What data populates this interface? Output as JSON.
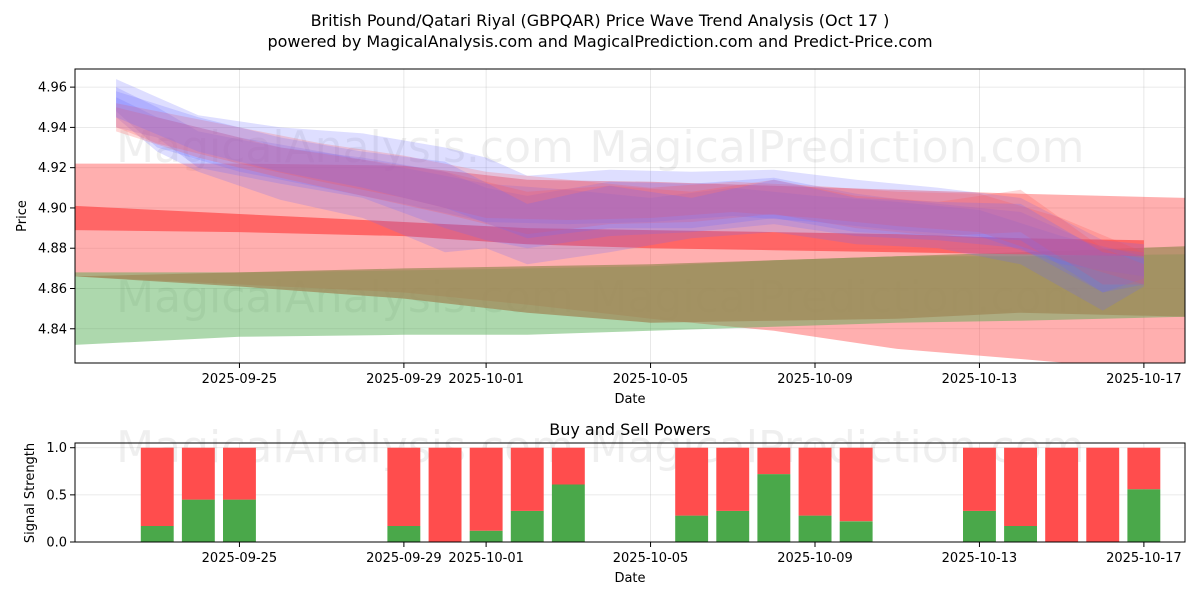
{
  "header": {
    "title_line1": "British Pound/Qatari Riyal (GBPQAR) Price Wave Trend Analysis (Oct 17 )",
    "title_line2": "powered by MagicalAnalysis.com and MagicalPrediction.com and Predict-Price.com"
  },
  "watermarks": {
    "left": "MagicalAnalysis.com",
    "right": "MagicalPrediction.com"
  },
  "colors": {
    "red": "#ff4d4d",
    "green": "#4aa84a",
    "blue": "#6b6bff",
    "olive": "#a08a5a"
  },
  "chart_data": [
    {
      "type": "area",
      "xlabel": "Date",
      "ylabel": "Price",
      "xlim": [
        "2025-09-21",
        "2025-10-18"
      ],
      "ylim": [
        4.823,
        4.969
      ],
      "x_ticks": [
        "2025-09-25",
        "2025-09-29",
        "2025-10-01",
        "2025-10-05",
        "2025-10-09",
        "2025-10-13",
        "2025-10-17"
      ],
      "y_ticks": [
        "4.84",
        "4.86",
        "4.88",
        "4.90",
        "4.92",
        "4.94",
        "4.96"
      ],
      "grid": true,
      "series": [
        {
          "color": "red",
          "opacity": 0.45,
          "x": [
            "2025-09-21",
            "2025-09-25",
            "2025-09-29",
            "2025-10-02",
            "2025-10-05",
            "2025-10-08",
            "2025-10-11",
            "2025-10-14",
            "2025-10-18"
          ],
          "upper": [
            4.922,
            4.922,
            4.921,
            4.914,
            4.913,
            4.911,
            4.909,
            4.907,
            4.905
          ],
          "lower": [
            4.866,
            4.862,
            4.858,
            4.852,
            4.845,
            4.839,
            4.83,
            4.825,
            4.818
          ]
        },
        {
          "color": "green",
          "opacity": 0.45,
          "x": [
            "2025-09-21",
            "2025-09-25",
            "2025-09-29",
            "2025-10-02",
            "2025-10-05",
            "2025-10-08",
            "2025-10-11",
            "2025-10-14",
            "2025-10-18"
          ],
          "upper": [
            4.868,
            4.868,
            4.869,
            4.87,
            4.871,
            4.874,
            4.876,
            4.876,
            4.877
          ],
          "lower": [
            4.832,
            4.836,
            4.837,
            4.837,
            4.839,
            4.841,
            4.843,
            4.844,
            4.846
          ]
        },
        {
          "color": "olive",
          "opacity": 0.75,
          "x": [
            "2025-09-21",
            "2025-09-25",
            "2025-09-29",
            "2025-10-02",
            "2025-10-05",
            "2025-10-08",
            "2025-10-11",
            "2025-10-14",
            "2025-10-18"
          ],
          "upper": [
            4.866,
            4.868,
            4.87,
            4.871,
            4.872,
            4.874,
            4.876,
            4.878,
            4.881
          ],
          "lower": [
            4.866,
            4.861,
            4.855,
            4.848,
            4.843,
            4.844,
            4.845,
            4.848,
            4.846
          ]
        },
        {
          "color": "red",
          "opacity": 0.75,
          "x": [
            "2025-09-21",
            "2025-09-25",
            "2025-09-29",
            "2025-10-02",
            "2025-10-05",
            "2025-10-08",
            "2025-10-11",
            "2025-10-14",
            "2025-10-17"
          ],
          "upper": [
            4.901,
            4.897,
            4.893,
            4.89,
            4.889,
            4.888,
            4.887,
            4.885,
            4.884
          ],
          "lower": [
            4.889,
            4.888,
            4.886,
            4.882,
            4.88,
            4.879,
            4.878,
            4.877,
            4.876
          ]
        },
        {
          "color": "blue",
          "opacity": 0.22,
          "x": [
            "2025-09-22",
            "2025-09-23",
            "2025-09-24",
            "2025-09-26",
            "2025-09-28",
            "2025-09-30",
            "2025-10-01",
            "2025-10-02",
            "2025-10-04",
            "2025-10-06",
            "2025-10-08",
            "2025-10-10",
            "2025-10-12",
            "2025-10-14",
            "2025-10-16",
            "2025-10-17"
          ],
          "upper": [
            4.964,
            4.955,
            4.946,
            4.94,
            4.937,
            4.93,
            4.925,
            4.916,
            4.919,
            4.918,
            4.919,
            4.914,
            4.91,
            4.905,
            4.884,
            4.882
          ],
          "lower": [
            4.945,
            4.928,
            4.918,
            4.904,
            4.895,
            4.878,
            4.88,
            4.872,
            4.878,
            4.885,
            4.888,
            4.882,
            4.88,
            4.872,
            4.849,
            4.861
          ]
        },
        {
          "color": "blue",
          "opacity": 0.22,
          "x": [
            "2025-09-22",
            "2025-09-23",
            "2025-09-24",
            "2025-09-26",
            "2025-09-28",
            "2025-09-30",
            "2025-10-01",
            "2025-10-02",
            "2025-10-04",
            "2025-10-06",
            "2025-10-08",
            "2025-10-10",
            "2025-10-12",
            "2025-10-14",
            "2025-10-16",
            "2025-10-17"
          ],
          "upper": [
            4.96,
            4.95,
            4.938,
            4.93,
            4.925,
            4.918,
            4.91,
            4.906,
            4.913,
            4.912,
            4.915,
            4.907,
            4.902,
            4.898,
            4.88,
            4.878
          ],
          "lower": [
            4.94,
            4.935,
            4.92,
            4.912,
            4.905,
            4.89,
            4.884,
            4.88,
            4.886,
            4.888,
            4.892,
            4.886,
            4.884,
            4.88,
            4.858,
            4.865
          ]
        },
        {
          "color": "blue",
          "opacity": 0.22,
          "x": [
            "2025-09-22",
            "2025-09-23",
            "2025-09-25",
            "2025-09-27",
            "2025-09-29",
            "2025-10-01",
            "2025-10-03",
            "2025-10-05",
            "2025-10-07",
            "2025-10-09",
            "2025-10-11",
            "2025-10-13",
            "2025-10-15",
            "2025-10-17"
          ],
          "upper": [
            4.955,
            4.945,
            4.935,
            4.928,
            4.92,
            4.912,
            4.909,
            4.905,
            4.91,
            4.906,
            4.903,
            4.899,
            4.886,
            4.876
          ],
          "lower": [
            4.948,
            4.93,
            4.918,
            4.91,
            4.902,
            4.893,
            4.892,
            4.893,
            4.896,
            4.893,
            4.889,
            4.886,
            4.872,
            4.866
          ]
        },
        {
          "color": "red",
          "opacity": 0.22,
          "x": [
            "2025-09-22",
            "2025-09-23",
            "2025-09-25",
            "2025-09-27",
            "2025-09-29",
            "2025-10-01",
            "2025-10-03",
            "2025-10-05",
            "2025-10-07",
            "2025-10-09",
            "2025-10-11",
            "2025-10-13",
            "2025-10-15",
            "2025-10-17"
          ],
          "upper": [
            4.952,
            4.948,
            4.94,
            4.932,
            4.926,
            4.918,
            4.914,
            4.91,
            4.913,
            4.911,
            4.908,
            4.907,
            4.895,
            4.878
          ],
          "lower": [
            4.94,
            4.932,
            4.922,
            4.913,
            4.905,
            4.895,
            4.894,
            4.895,
            4.898,
            4.895,
            4.891,
            4.888,
            4.874,
            4.862
          ]
        },
        {
          "color": "red",
          "opacity": 0.22,
          "x": [
            "2025-09-22",
            "2025-09-24",
            "2025-09-26",
            "2025-09-28",
            "2025-09-30",
            "2025-10-02",
            "2025-10-04",
            "2025-10-06",
            "2025-10-08",
            "2025-10-10",
            "2025-10-12",
            "2025-10-14",
            "2025-10-16",
            "2025-10-17"
          ],
          "upper": [
            4.95,
            4.94,
            4.93,
            4.924,
            4.918,
            4.908,
            4.911,
            4.908,
            4.914,
            4.906,
            4.903,
            4.909,
            4.88,
            4.872
          ],
          "lower": [
            4.938,
            4.925,
            4.915,
            4.906,
            4.897,
            4.887,
            4.892,
            4.893,
            4.897,
            4.89,
            4.886,
            4.888,
            4.862,
            4.862
          ]
        },
        {
          "color": "blue",
          "opacity": 0.22,
          "x": [
            "2025-09-22",
            "2025-09-24",
            "2025-09-26",
            "2025-09-28",
            "2025-09-30",
            "2025-10-02",
            "2025-10-04",
            "2025-10-06",
            "2025-10-08",
            "2025-10-10",
            "2025-10-12",
            "2025-10-14",
            "2025-10-16",
            "2025-10-17"
          ],
          "upper": [
            4.958,
            4.945,
            4.935,
            4.928,
            4.923,
            4.902,
            4.911,
            4.905,
            4.914,
            4.905,
            4.903,
            4.902,
            4.878,
            4.875
          ],
          "lower": [
            4.945,
            4.928,
            4.918,
            4.91,
            4.9,
            4.885,
            4.89,
            4.89,
            4.895,
            4.888,
            4.886,
            4.884,
            4.858,
            4.862
          ]
        }
      ]
    },
    {
      "type": "bar",
      "title": "Buy and Sell Powers",
      "xlabel": "Date",
      "ylabel": "Signal Strength",
      "xlim": [
        "2025-09-21",
        "2025-10-18"
      ],
      "ylim": [
        0,
        1.05
      ],
      "x_ticks": [
        "2025-09-25",
        "2025-09-29",
        "2025-10-01",
        "2025-10-05",
        "2025-10-09",
        "2025-10-13",
        "2025-10-17"
      ],
      "y_ticks": [
        "0.0",
        "0.5",
        "1.0"
      ],
      "grid": true,
      "categories": [
        "2025-09-23",
        "2025-09-24",
        "2025-09-25",
        "2025-09-29",
        "2025-09-30",
        "2025-10-01",
        "2025-10-02",
        "2025-10-03",
        "2025-10-06",
        "2025-10-07",
        "2025-10-08",
        "2025-10-09",
        "2025-10-10",
        "2025-10-13",
        "2025-10-14",
        "2025-10-15",
        "2025-10-16",
        "2025-10-17"
      ],
      "series": [
        {
          "color": "green",
          "values": [
            0.17,
            0.45,
            0.45,
            0.17,
            0.0,
            0.12,
            0.33,
            0.61,
            0.28,
            0.33,
            0.72,
            0.28,
            0.22,
            0.33,
            0.17,
            0.0,
            0.0,
            0.56
          ]
        },
        {
          "color": "red",
          "values": [
            0.83,
            0.55,
            0.55,
            0.83,
            1.0,
            0.88,
            0.67,
            0.39,
            0.72,
            0.67,
            0.28,
            0.72,
            0.78,
            0.67,
            0.83,
            1.0,
            1.0,
            0.44
          ]
        }
      ]
    }
  ]
}
